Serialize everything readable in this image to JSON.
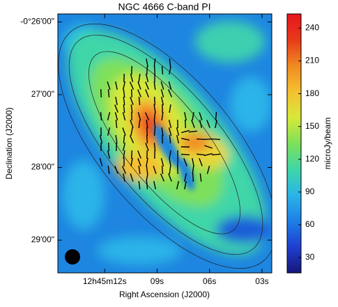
{
  "chart_data": {
    "type": "image",
    "title": "NGC 4666   C-band   PI",
    "xlabel": "Right Ascension (J2000)",
    "ylabel": "Declination (J2000)",
    "colorbar_label": "microJy/beam",
    "xlim": [
      14.68,
      2.44
    ],
    "xticks": [
      {
        "value": 12,
        "label": "12h45m12s"
      },
      {
        "value": 9,
        "label": "09s"
      },
      {
        "value": 6,
        "label": "06s"
      },
      {
        "value": 3,
        "label": "03s"
      }
    ],
    "ylim": [
      -29.45,
      -25.89
    ],
    "yticks": [
      {
        "value": -26,
        "label": "-0°26'00\""
      },
      {
        "value": -27,
        "label": "27'00\""
      },
      {
        "value": -28,
        "label": "28'00\""
      },
      {
        "value": -29,
        "label": "29'00\""
      }
    ],
    "zlim": [
      16,
      253
    ],
    "zticks": [
      30,
      60,
      90,
      120,
      150,
      180,
      210,
      240
    ],
    "colormap": [
      "#16167a",
      "#1f3fd0",
      "#1e7fe6",
      "#2ab4e8",
      "#3fd6a8",
      "#7ee05a",
      "#d8e838",
      "#f5c030",
      "#f08a20",
      "#e83a1a",
      "#e8141e"
    ]
  }
}
